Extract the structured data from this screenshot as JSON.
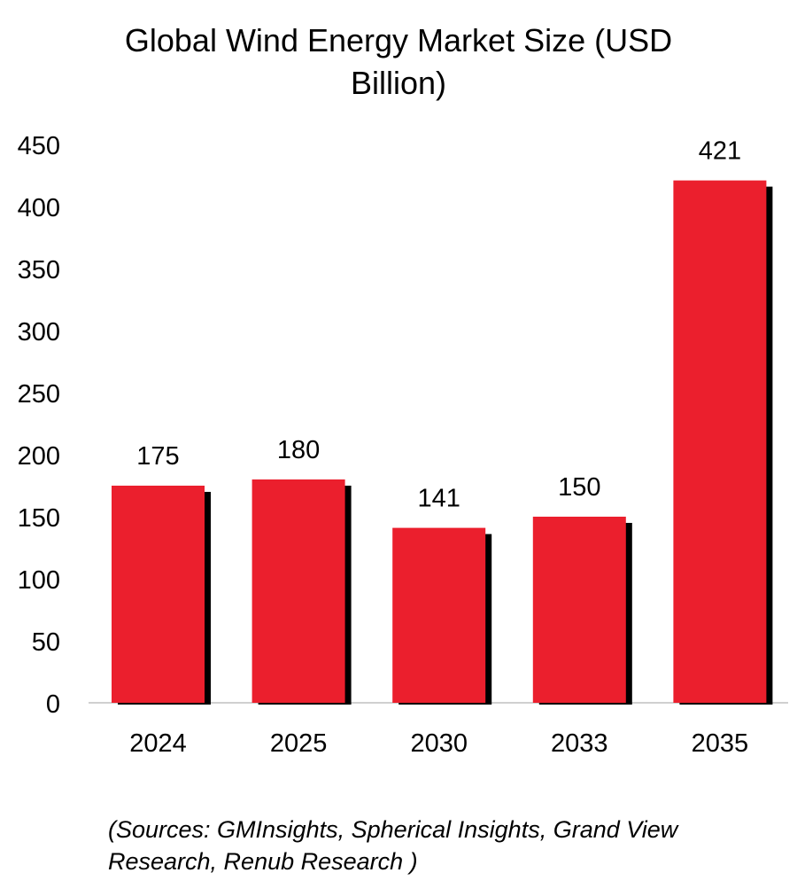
{
  "chart_data": {
    "type": "bar",
    "title_lines": [
      "Global Wind Energy Market Size (USD",
      "Billion)"
    ],
    "categories": [
      "2024",
      "2025",
      "2030",
      "2033",
      "2035"
    ],
    "values": [
      175,
      180,
      141,
      150,
      421
    ],
    "data_labels": [
      "175",
      "180",
      "141",
      "150",
      "421"
    ],
    "xlabel": "",
    "ylabel": "",
    "ylim": [
      0,
      450
    ],
    "yticks": [
      "0",
      "50",
      "100",
      "150",
      "200",
      "250",
      "300",
      "350",
      "400",
      "450"
    ],
    "grid": false,
    "legend": "none",
    "bar_color": "#EB1F2D",
    "shadow_color": "#000000",
    "axis_color": "#D0D0D0"
  },
  "source_lines": [
    "(Sources: GMInsights, Spherical Insights, Grand View",
    "Research, Renub Research )"
  ]
}
